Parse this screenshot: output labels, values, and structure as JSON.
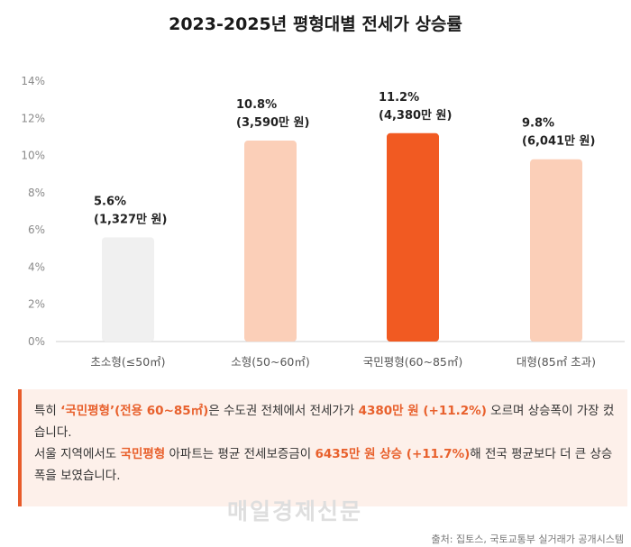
{
  "chart_data": {
    "type": "bar",
    "title": "2023-2025년 평형대별 전세가 상승률",
    "categories": [
      "초소형(≤50㎡)",
      "소형(50~60㎡)",
      "국민평형(60~85㎡)",
      "대형(85㎡ 초과)"
    ],
    "values": [
      5.6,
      10.8,
      11.2,
      9.8
    ],
    "data_labels": [
      [
        "5.6%",
        "(1,327만 원)"
      ],
      [
        "10.8%",
        "(3,590만 원)"
      ],
      [
        "11.2%",
        "(4,380만 원)"
      ],
      [
        "9.8%",
        "(6,041만 원)"
      ]
    ],
    "bar_colors": [
      "#f0f0f0",
      "#fbcfb8",
      "#f15a22",
      "#fbcfb8"
    ],
    "y_ticks": [
      "0%",
      "2%",
      "4%",
      "6%",
      "8%",
      "10%",
      "12%",
      "14%"
    ],
    "ylim": [
      0,
      14
    ],
    "grid": false,
    "legend": "none"
  },
  "note": {
    "p1_a": "특히 ",
    "p1_b": "‘국민평형’(전용 60~85㎡)",
    "p1_c": "은 수도권 전체에서 전세가가 ",
    "p1_d": "4380만 원 (+11.2%)",
    "p1_e": " 오르며 상승폭이 가장 컸습니다.",
    "p2_a": "서울 지역에서도 ",
    "p2_b": "국민평형",
    "p2_c": " 아파트는 평균 전세보증금이 ",
    "p2_d": "6435만 원 상승 (+11.7%)",
    "p2_e": "해 전국 평균보다 더 큰 상승폭을 보였습니다."
  },
  "watermark": "매일경제신문",
  "source": "출처: 집토스, 국토교통부 실거래가 공개시스템",
  "colors": {
    "accent": "#e8602c",
    "note_bg": "#fdf0ea"
  }
}
